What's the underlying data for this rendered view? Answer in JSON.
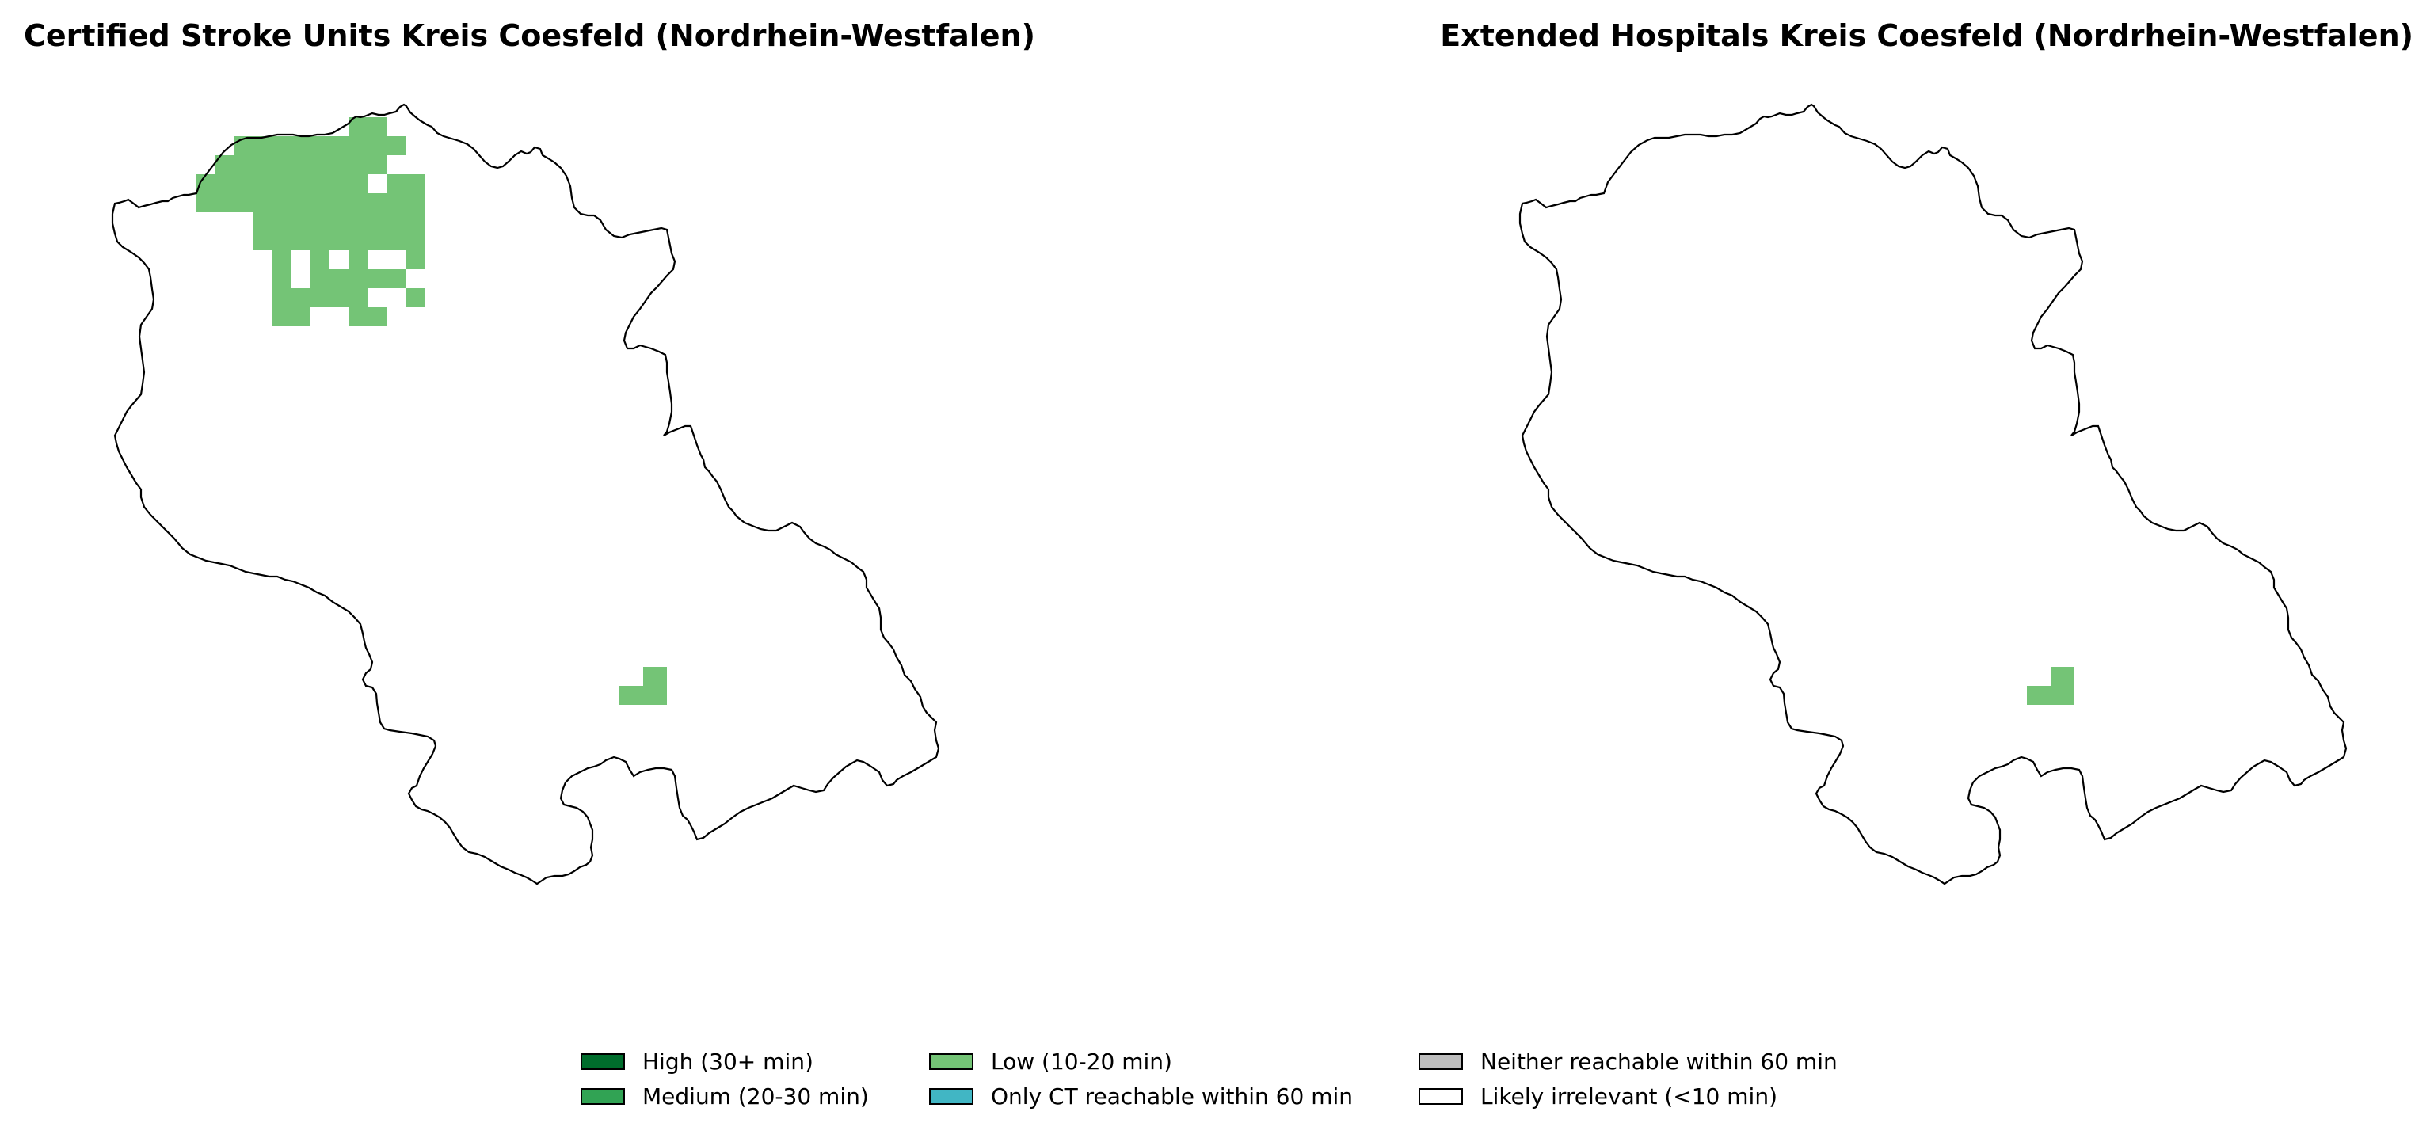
{
  "maps": [
    {
      "title": "Certified Stroke Units Kreis Coesfeld (Nordrhein-Westfalen)",
      "cells": [
        {
          "row": 0,
          "cols": [
            8,
            9
          ]
        },
        {
          "row": 1,
          "cols": [
            2,
            3,
            4,
            5,
            6,
            7,
            8,
            9,
            10
          ]
        },
        {
          "row": 2,
          "cols": [
            1,
            2,
            3,
            4,
            5,
            6,
            7,
            8,
            9
          ]
        },
        {
          "row": 3,
          "cols": [
            0,
            1,
            2,
            3,
            4,
            5,
            6,
            7,
            8,
            10,
            11
          ]
        },
        {
          "row": 4,
          "cols": [
            0,
            1,
            2,
            3,
            4,
            5,
            6,
            7,
            8,
            9,
            10,
            11
          ]
        },
        {
          "row": 5,
          "cols": [
            3,
            4,
            5,
            6,
            7,
            8,
            9,
            10,
            11
          ]
        },
        {
          "row": 6,
          "cols": [
            3,
            4,
            5,
            6,
            7,
            8,
            9,
            10,
            11
          ]
        },
        {
          "row": 7,
          "cols": [
            4,
            6,
            8,
            11
          ]
        },
        {
          "row": 8,
          "cols": [
            4,
            6,
            7,
            8,
            9,
            10
          ]
        },
        {
          "row": 9,
          "cols": [
            4,
            5,
            6,
            7,
            8,
            11
          ]
        },
        {
          "row": 10,
          "cols": [
            4,
            5,
            8,
            9
          ]
        }
      ],
      "class": "Low (10-20 min)"
    },
    {
      "title": "Extended Hospitals Kreis Coesfeld (Nordrhein-Westfalen)",
      "class": "Low (10-20 min)"
    }
  ],
  "legend": [
    {
      "label": "High (30+ min)",
      "color": "#006d2c"
    },
    {
      "label": "Medium (20-30 min)",
      "color": "#31a354"
    },
    {
      "label": "Low (10-20 min)",
      "color": "#74c476"
    },
    {
      "label": "Only CT reachable within 60 min",
      "color": "#41b6c4"
    },
    {
      "label": "Neither reachable within 60 min",
      "color": "#bdbdbd"
    },
    {
      "label": "Likely irrelevant (<10 min)",
      "color": "#ffffff"
    }
  ]
}
